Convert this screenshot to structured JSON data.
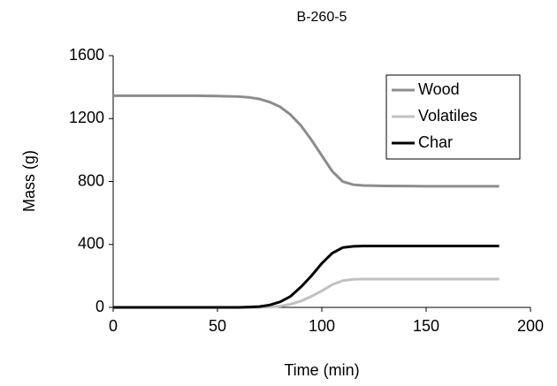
{
  "chart_data": {
    "type": "line",
    "title": "B-260-5",
    "x_label": "Time (min)",
    "y_label": "Mass (g)",
    "x": [
      0,
      10,
      20,
      30,
      40,
      50,
      60,
      65,
      70,
      75,
      80,
      85,
      90,
      95,
      100,
      105,
      110,
      115,
      120,
      130,
      140,
      150,
      160,
      170,
      185
    ],
    "series": [
      {
        "name": "Wood",
        "color": "#8c8c8c",
        "values": [
          1345,
          1345,
          1345,
          1345,
          1345,
          1343,
          1340,
          1335,
          1325,
          1305,
          1275,
          1225,
          1155,
          1065,
          965,
          865,
          800,
          780,
          775,
          772,
          771,
          770,
          770,
          770,
          770
        ]
      },
      {
        "name": "Volatiles",
        "color": "#c0c0c0",
        "values": [
          0,
          0,
          0,
          0,
          0,
          0,
          0,
          0,
          0,
          2,
          8,
          20,
          40,
          70,
          105,
          145,
          170,
          178,
          180,
          180,
          180,
          180,
          180,
          180,
          180
        ]
      },
      {
        "name": "Char",
        "color": "#000000",
        "values": [
          0,
          0,
          0,
          0,
          0,
          0,
          0,
          2,
          5,
          15,
          35,
          70,
          130,
          200,
          280,
          345,
          380,
          388,
          390,
          390,
          390,
          390,
          390,
          390,
          390
        ]
      }
    ],
    "xlim": [
      0,
      200
    ],
    "xticks": [
      0,
      50,
      100,
      150,
      200
    ],
    "ylim": [
      0,
      1600
    ],
    "yticks": [
      0,
      400,
      800,
      1200,
      1600
    ],
    "grid": false,
    "legend": "upper right"
  }
}
